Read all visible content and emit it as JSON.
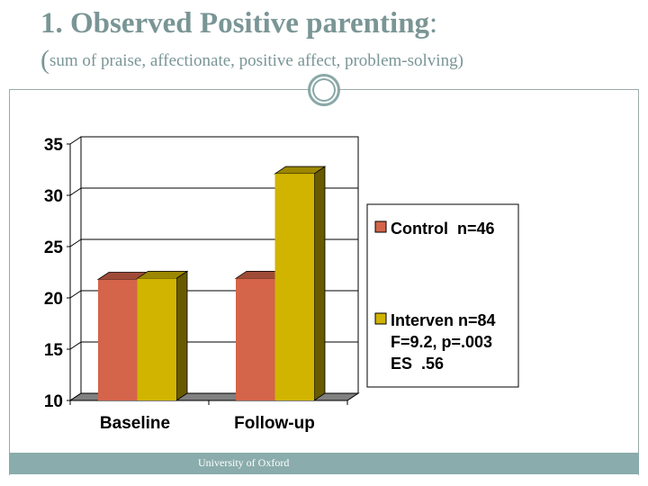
{
  "slide": {
    "title": "1. Observed Positive parenting",
    "title_colon": ":",
    "subtitle_paren": "(",
    "subtitle": "sum of praise, affectionate, positive affect, problem-solving)",
    "footer": "University of Oxford"
  },
  "chart_data": {
    "type": "bar",
    "style": "3d-clustered",
    "categories": [
      "Baseline",
      "Follow-up"
    ],
    "series": [
      {
        "name": "Control  n=46",
        "values": [
          21.8,
          21.9
        ],
        "color": "#d4644a"
      },
      {
        "name": "Interven n=84",
        "values": [
          21.9,
          32.1
        ],
        "color": "#d0b400"
      }
    ],
    "ylim": [
      10,
      35
    ],
    "yticks": [
      "10",
      "15",
      "20",
      "25",
      "30",
      "35"
    ],
    "grid": true,
    "legend_position": "right",
    "annotation": [
      "F=9.2, p=.003",
      "ES  .56"
    ]
  }
}
